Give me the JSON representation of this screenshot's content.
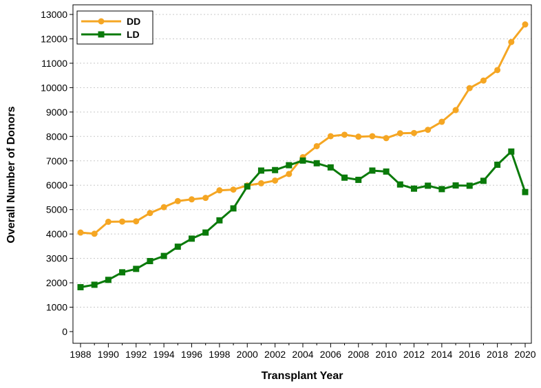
{
  "chart_data": {
    "type": "line",
    "xlabel": "Transplant Year",
    "ylabel": "Overall Number of Donors",
    "xlim": [
      1988,
      2020
    ],
    "ylim": [
      0,
      13000
    ],
    "x_ticks": [
      1988,
      1990,
      1992,
      1994,
      1996,
      1998,
      2000,
      2002,
      2004,
      2006,
      2008,
      2010,
      2012,
      2014,
      2016,
      2018,
      2020
    ],
    "y_ticks": [
      0,
      1000,
      2000,
      3000,
      4000,
      5000,
      6000,
      7000,
      8000,
      9000,
      10000,
      11000,
      12000,
      13000
    ],
    "grid": "horizontal-dotted",
    "legend_position": "top-left",
    "x": [
      1988,
      1989,
      1990,
      1991,
      1992,
      1993,
      1994,
      1995,
      1996,
      1997,
      1998,
      1999,
      2000,
      2001,
      2002,
      2003,
      2004,
      2005,
      2006,
      2007,
      2008,
      2009,
      2010,
      2011,
      2012,
      2013,
      2014,
      2015,
      2016,
      2017,
      2018,
      2019,
      2020
    ],
    "series": [
      {
        "name": "DD",
        "color": "#f5a623",
        "marker": "circle",
        "values": [
          4060,
          4010,
          4500,
          4510,
          4520,
          4860,
          5100,
          5350,
          5420,
          5480,
          5790,
          5820,
          5990,
          6080,
          6190,
          6460,
          7150,
          7600,
          8010,
          8070,
          7990,
          8010,
          7930,
          8130,
          8140,
          8270,
          8600,
          9080,
          9980,
          10290,
          10720,
          11870,
          12590
        ]
      },
      {
        "name": "LD",
        "color": "#0a7a0a",
        "marker": "square",
        "values": [
          1820,
          1920,
          2120,
          2430,
          2570,
          2890,
          3100,
          3480,
          3810,
          4060,
          4560,
          5050,
          5950,
          6600,
          6620,
          6820,
          7010,
          6900,
          6730,
          6310,
          6220,
          6600,
          6560,
          6030,
          5860,
          5980,
          5840,
          5990,
          5980,
          6180,
          6840,
          7380,
          5720
        ]
      }
    ]
  }
}
